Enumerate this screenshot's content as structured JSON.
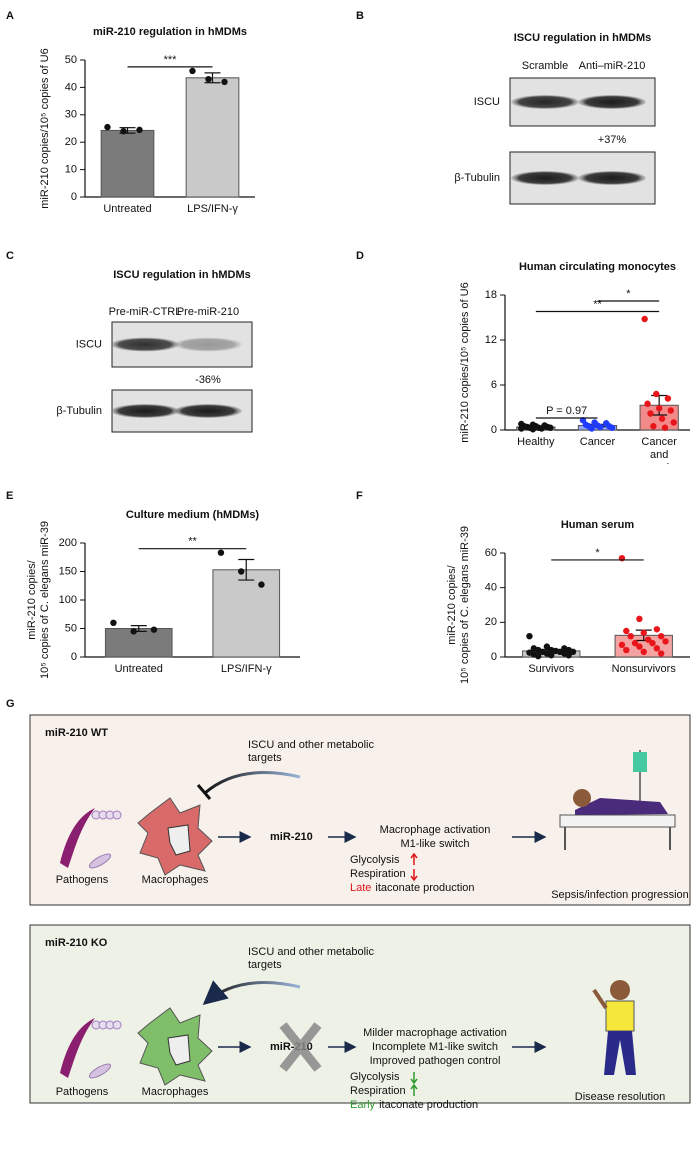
{
  "chart_data": [
    {
      "type": "bar",
      "panel": "A",
      "title": "miR-210 regulation in hMDMs",
      "ylabel": [
        "miR-210 copies/10⁵ copies of U6"
      ],
      "categories": [
        "Untreated",
        "LPS/IFN-γ"
      ],
      "values": [
        24.3,
        43.5
      ],
      "errors": [
        1.0,
        1.8
      ],
      "points": [
        [
          25.5,
          24.0,
          24.5
        ],
        [
          46.0,
          43.0,
          42.0
        ]
      ],
      "colors": [
        "#7b7b7b",
        "#c9c9c9"
      ],
      "point_colors": [
        "#111111",
        "#111111"
      ],
      "ylim": [
        0,
        50
      ],
      "yticks": [
        0,
        10,
        20,
        30,
        40,
        50
      ],
      "annotations": [
        "***"
      ]
    },
    {
      "type": "bar",
      "panel": "D",
      "title": "Human circulating monocytes",
      "ylabel": [
        "miR-210 copies/10⁵ copies of U6"
      ],
      "categories": [
        "Healthy",
        "Cancer",
        "Cancer and sepsis"
      ],
      "values": [
        0.4,
        0.6,
        3.3
      ],
      "errors": [
        0.1,
        0.15,
        1.3
      ],
      "points": [
        [
          0.8,
          0.7,
          0.6,
          0.5,
          0.5,
          0.4,
          0.4,
          0.3,
          0.3,
          0.3,
          0.2,
          0.2,
          0.1,
          0.5
        ],
        [
          1.3,
          1.0,
          0.9,
          0.7,
          0.6,
          0.5,
          0.5,
          0.4,
          0.3,
          0.2
        ],
        [
          14.8,
          4.8,
          4.2,
          3.5,
          2.9,
          2.6,
          2.2,
          1.5,
          1.0,
          0.5,
          0.3
        ]
      ],
      "colors": [
        "#a0a0a0",
        "#93aaff",
        "#f38a8a"
      ],
      "point_colors": [
        "#111111",
        "#1f3cff",
        "#e8161b"
      ],
      "ylim": [
        0,
        18
      ],
      "yticks": [
        0,
        6,
        12,
        18
      ],
      "annotations": [
        "P = 0.97",
        "**",
        "*"
      ]
    },
    {
      "type": "bar",
      "panel": "E",
      "title": "Culture medium (hMDMs)",
      "ylabel": [
        "miR-210 copies/",
        "10⁵ copies of C. elegans miR-39"
      ],
      "categories": [
        "Untreated",
        "LPS/IFN-γ"
      ],
      "values": [
        50,
        153
      ],
      "errors": [
        5,
        18
      ],
      "points": [
        [
          60,
          45,
          48
        ],
        [
          183,
          150,
          127
        ]
      ],
      "colors": [
        "#7b7b7b",
        "#c9c9c9"
      ],
      "point_colors": [
        "#111111",
        "#111111"
      ],
      "ylim": [
        0,
        200
      ],
      "yticks": [
        0,
        50,
        100,
        150,
        200
      ],
      "annotations": [
        "**"
      ]
    },
    {
      "type": "bar",
      "panel": "F",
      "title": "Human serum",
      "ylabel": [
        "miR-210 copies/",
        "10⁵ copies of C. elegans miR-39"
      ],
      "categories": [
        "Survivors",
        "Nonsurvivors"
      ],
      "values": [
        3.5,
        12.5
      ],
      "errors": [
        0.7,
        3
      ],
      "points": [
        [
          12,
          6,
          5,
          5,
          4,
          4,
          4,
          3.5,
          3,
          3,
          3,
          2.5,
          2,
          2,
          1.5,
          1,
          1,
          0.5
        ],
        [
          57,
          22,
          16,
          15,
          14,
          12,
          12,
          10,
          9,
          8,
          8,
          7,
          6,
          5,
          4,
          3,
          2
        ]
      ],
      "colors": [
        "#c9c9c9",
        "#f4a3a3"
      ],
      "point_colors": [
        "#111111",
        "#e8161b"
      ],
      "ylim": [
        0,
        60
      ],
      "yticks": [
        0,
        20,
        40,
        60
      ],
      "annotations": [
        "*"
      ]
    }
  ],
  "blots": [
    {
      "panel": "B",
      "title": "ISCU regulation in hMDMs",
      "lanes": [
        "Scramble",
        "Anti–miR-210"
      ],
      "rows": [
        "ISCU",
        "β-Tubulin"
      ],
      "change": "+37%"
    },
    {
      "panel": "C",
      "title": "ISCU regulation in hMDMs",
      "lanes": [
        "Pre-miR-CTRL",
        "Pre-miR-210"
      ],
      "rows": [
        "ISCU",
        "β-Tubulin"
      ],
      "change": "-36%"
    }
  ],
  "diagram": {
    "label": "G",
    "wt": {
      "title": "miR-210 WT",
      "targets": [
        "ISCU and other metabolic",
        "targets"
      ],
      "pathogens": "Pathogens",
      "macrophages": "Macrophages",
      "mirna": "miR-210",
      "effects": [
        "Macrophage activation",
        "M1-like switch"
      ],
      "metabolism": [
        "Glycolysis",
        "Respiration"
      ],
      "itaconate_timing": "Late",
      "itaconate": "itaconate production",
      "outcome": "Sepsis/infection progression"
    },
    "ko": {
      "title": "miR-210 KO",
      "targets": [
        "ISCU and other metabolic",
        "targets"
      ],
      "pathogens": "Pathogens",
      "macrophages": "Macrophages",
      "mirna": "miR-210",
      "effects": [
        "Milder macrophage activation",
        "Incomplete M1-like switch",
        "Improved pathogen control"
      ],
      "metabolism": [
        "Glycolysis",
        "Respiration"
      ],
      "itaconate_timing": "Early",
      "itaconate": "itaconate production",
      "outcome": "Disease resolution"
    }
  }
}
